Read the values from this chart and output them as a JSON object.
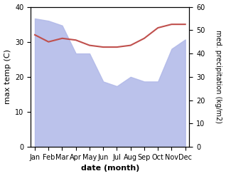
{
  "months": [
    "Jan",
    "Feb",
    "Mar",
    "Apr",
    "May",
    "Jun",
    "Jul",
    "Aug",
    "Sep",
    "Oct",
    "Nov",
    "Dec"
  ],
  "precipitation_right": [
    55,
    54,
    52,
    40,
    40,
    28,
    26,
    30,
    28,
    28,
    42,
    46
  ],
  "temperature": [
    32,
    30,
    31,
    30.5,
    29,
    28.5,
    28.5,
    29,
    31,
    34,
    35,
    35
  ],
  "precip_color": "#b0b8e8",
  "temp_color": "#c0504d",
  "left_ylim": [
    0,
    40
  ],
  "right_ylim": [
    0,
    60
  ],
  "left_yticks": [
    0,
    10,
    20,
    30,
    40
  ],
  "right_yticks": [
    0,
    10,
    20,
    30,
    40,
    50,
    60
  ],
  "ylabel_left": "max temp (C)",
  "ylabel_right": "med. precipitation (kg/m2)",
  "xlabel": "date (month)",
  "bg_color": "#ffffff"
}
